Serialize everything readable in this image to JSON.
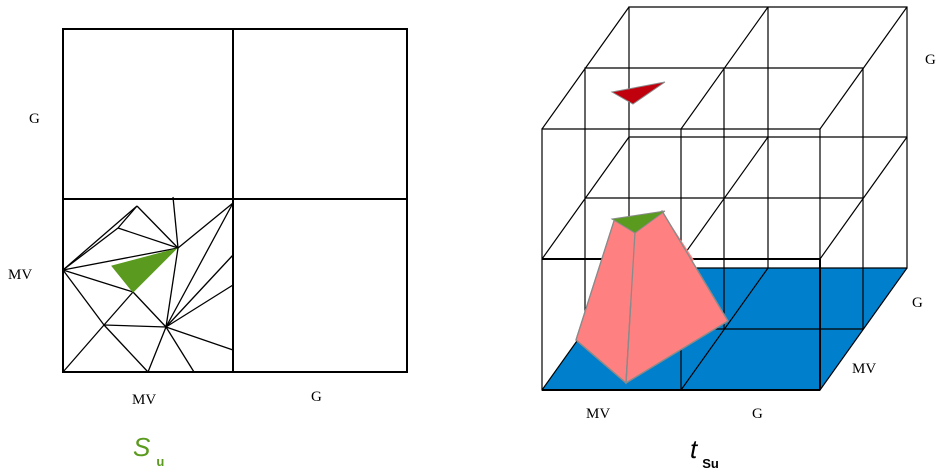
{
  "left_panel": {
    "row_labels": [
      "G",
      "MV"
    ],
    "column_labels": [
      "MV",
      "G"
    ],
    "symbol": {
      "main": "S",
      "sub": "u"
    }
  },
  "right_panel": {
    "depth_labels": [
      "G",
      "MV"
    ],
    "column_labels": [
      "MV",
      "G"
    ],
    "symbol": {
      "main": "t",
      "sub": "Su"
    }
  },
  "colors": {
    "line": "#000000",
    "green_triangle": "#5a9a1e",
    "red_triangle": "#c0000c",
    "blue_floor": "#0080cc",
    "pink_frustum": "#ff8080",
    "symbol_green": "#5a9a1e"
  }
}
